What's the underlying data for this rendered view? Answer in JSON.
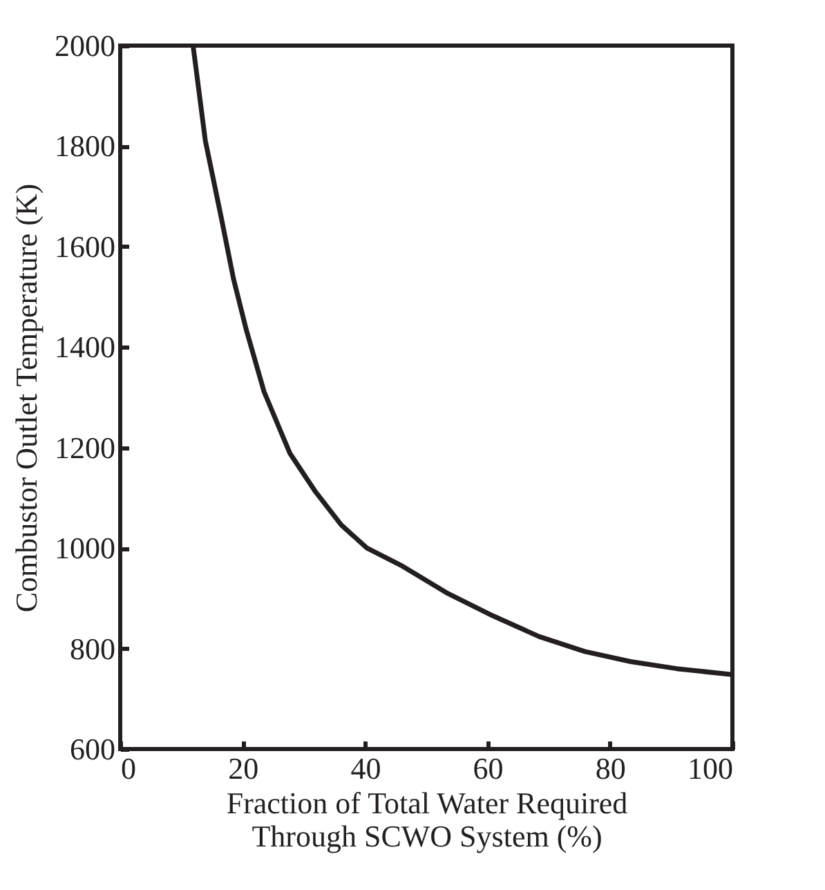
{
  "chart_data": {
    "type": "line",
    "xlabel": "Fraction of Total Water Required Through SCWO System (%)",
    "ylabel": "Combustor Outlet Temperature (K)",
    "x": [
      11.9,
      13.9,
      16.5,
      18.5,
      20.6,
      23.5,
      27.7,
      31.9,
      36.1,
      40.3,
      45.8,
      53.3,
      60.9,
      68.4,
      75.9,
      83.4,
      90.9,
      100
    ],
    "series": [
      {
        "color": "#231f20",
        "values": [
          2000,
          1811,
          1658,
          1536,
          1434,
          1311,
          1189,
          1112,
          1046,
          1000,
          966,
          911,
          865,
          824,
          794,
          774,
          760,
          748
        ]
      }
    ],
    "xlim": [
      0,
      100
    ],
    "xticks": [
      0,
      20,
      40,
      60,
      80,
      100
    ],
    "ylim": [
      600,
      2000
    ],
    "yticks": [
      600,
      800,
      1000,
      1200,
      1400,
      1600,
      1800,
      2000
    ],
    "grid": false,
    "marker": "none",
    "line_style": "solid"
  }
}
